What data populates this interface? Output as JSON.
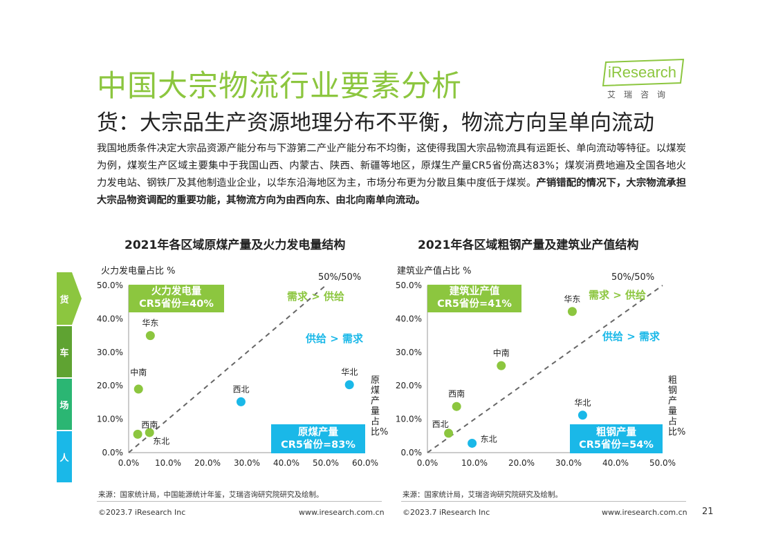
{
  "header": {
    "title": "中国大宗物流行业要素分析",
    "subtitle": "货：大宗品生产资源地理分布不平衡，物流方向呈单向流动"
  },
  "logo": {
    "text": "iResearch",
    "cn": "艾瑞咨询"
  },
  "intro": {
    "text": "我国地质条件决定大宗品资源产能分布与下游第二产业产能分布不均衡，这使得我国大宗品物流具有运距长、单向流动等特征。以煤炭为例，煤炭生产区域主要集中于我国山西、内蒙古、陕西、新疆等地区，原煤生产量CR5省份高达83%；煤炭消费地遍及全国各地火力发电站、钢铁厂及其他制造业企业，以华东沿海地区为主，市场分布更为分散且集中度低于煤炭。",
    "bold": "产销错配的情况下，大宗物流承担大宗品物资调配的重要功能，其物流方向为由西向东、由北向南单向流动。"
  },
  "side_tabs": [
    "货",
    "车",
    "场",
    "人"
  ],
  "colors": {
    "green": "#8cc63f",
    "blue": "#1ab8e8",
    "dark_green": "#5fa332",
    "dash": "#666666"
  },
  "charts": {
    "left": {
      "ylabel": "火力发电量占比 %",
      "right_label": "原煤产量占比%",
      "ref_label": "50%/50%",
      "demand_label": "需求 > 供给",
      "supply_label": "供给 > 需求",
      "green_box": [
        "火力发电量",
        "CR5省份=40%"
      ],
      "blue_box": [
        "原煤产量",
        "CR5省份=83%"
      ]
    },
    "right": {
      "ylabel": "建筑业产值占比 %",
      "right_label": "粗钢产量占比%",
      "ref_label": "50%/50%",
      "demand_label": "需求 > 供给",
      "supply_label": "供给 > 需求",
      "green_box": [
        "建筑业产值",
        "CR5省份=41%"
      ],
      "blue_box": [
        "粗钢产量",
        "CR5省份=54%"
      ]
    }
  },
  "chart_data": [
    {
      "type": "scatter",
      "title": "2021年各区域原煤产量及火力发电量结构",
      "xlabel": "原煤产量占比%",
      "ylabel": "火力发电量占比 %",
      "xlim": [
        0,
        60
      ],
      "ylim": [
        0,
        50
      ],
      "xticks": [
        "0.0%",
        "10.0%",
        "20.0%",
        "30.0%",
        "40.0%",
        "50.0%",
        "60.0%"
      ],
      "yticks": [
        "0.0%",
        "10.0%",
        "20.0%",
        "30.0%",
        "40.0%",
        "50.0%"
      ],
      "reference_line": "50%/50%",
      "points": [
        {
          "label": "华东",
          "x": 5.5,
          "y": 35,
          "color": "green"
        },
        {
          "label": "中南",
          "x": 2.5,
          "y": 19,
          "color": "green"
        },
        {
          "label": "西南",
          "x": 5.3,
          "y": 6,
          "color": "green"
        },
        {
          "label": "东北",
          "x": 2.3,
          "y": 5.5,
          "color": "green"
        },
        {
          "label": "西北",
          "x": 28.5,
          "y": 15.2,
          "color": "blue"
        },
        {
          "label": "华北",
          "x": 56,
          "y": 20.3,
          "color": "blue"
        }
      ]
    },
    {
      "type": "scatter",
      "title": "2021年各区域粗钢产量及建筑业产值结构",
      "xlabel": "粗钢产量占比%",
      "ylabel": "建筑业产值占比 %",
      "xlim": [
        0,
        50
      ],
      "ylim": [
        0,
        50
      ],
      "xticks": [
        "0.0%",
        "10.0%",
        "20.0%",
        "30.0%",
        "40.0%",
        "50.0%"
      ],
      "yticks": [
        "0.0%",
        "10.0%",
        "20.0%",
        "30.0%",
        "40.0%",
        "50.0%"
      ],
      "reference_line": "50%/50%",
      "points": [
        {
          "label": "华东",
          "x": 30.8,
          "y": 42.2,
          "color": "green"
        },
        {
          "label": "中南",
          "x": 15.7,
          "y": 26,
          "color": "green"
        },
        {
          "label": "西南",
          "x": 6.2,
          "y": 13.8,
          "color": "green"
        },
        {
          "label": "西北",
          "x": 4.5,
          "y": 5.8,
          "color": "green"
        },
        {
          "label": "东北",
          "x": 9.5,
          "y": 2.8,
          "color": "blue"
        },
        {
          "label": "华北",
          "x": 33,
          "y": 11.2,
          "color": "blue"
        }
      ]
    }
  ],
  "footer": {
    "source_left": "来源：国家统计局，中国能源统计年鉴，艾瑞咨询研究院研究及绘制。",
    "source_right": "来源：国家统计局，艾瑞咨询研究院研究及绘制。",
    "copyright_left": "©2023.7 iResearch Inc",
    "url_left": "www.iresearch.com.cn",
    "copyright_right": "©2023.7 iResearch Inc",
    "url_right": "www.iresearch.com.cn",
    "page": "21"
  }
}
